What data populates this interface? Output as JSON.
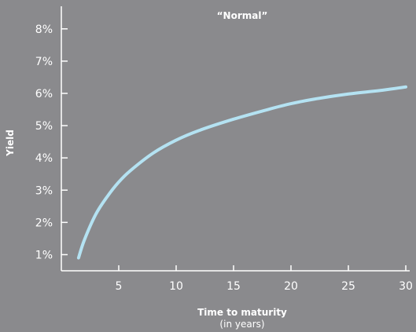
{
  "chart_data": {
    "type": "line",
    "title": "“Normal”",
    "xlabel": "Time to maturity",
    "xlabel_sub": "(in years)",
    "ylabel": "Yield",
    "xlim": [
      0,
      30
    ],
    "ylim": [
      0.5,
      8.7
    ],
    "x_ticks": [
      5,
      10,
      15,
      20,
      25,
      30
    ],
    "x_tick_labels": [
      "5",
      "10",
      "15",
      "20",
      "25",
      "30"
    ],
    "y_ticks": [
      1,
      2,
      3,
      4,
      5,
      6,
      7,
      8
    ],
    "y_tick_labels": [
      "1%",
      "2%",
      "3%",
      "4%",
      "5%",
      "6%",
      "7%",
      "8%"
    ],
    "grid": false,
    "colors": {
      "background": "#8a8a8d",
      "line": "#b4e2f2",
      "axis": "#ffffff"
    },
    "series": [
      {
        "x": [
          1.5,
          2,
          3,
          4,
          5,
          6,
          8,
          10,
          12,
          15,
          18,
          20,
          22,
          25,
          28,
          30
        ],
        "values": [
          0.9,
          1.45,
          2.25,
          2.8,
          3.25,
          3.6,
          4.15,
          4.55,
          4.85,
          5.2,
          5.5,
          5.68,
          5.82,
          5.98,
          6.1,
          6.2
        ]
      }
    ]
  }
}
